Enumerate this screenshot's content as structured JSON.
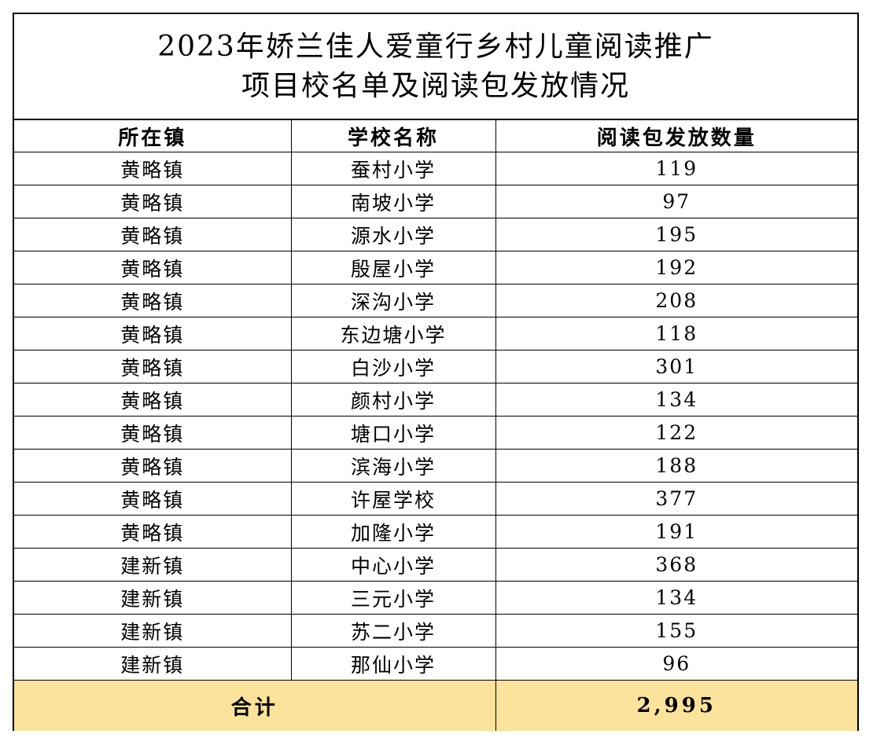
{
  "title": {
    "line1": "2023年娇兰佳人爱童行乡村儿童阅读推广",
    "line2": "项目校名单及阅读包发放情况"
  },
  "table": {
    "headers": [
      "所在镇",
      "学校名称",
      "阅读包发放数量"
    ],
    "rows": [
      {
        "town": "黄略镇",
        "school": "蚕村小学",
        "count": "119"
      },
      {
        "town": "黄略镇",
        "school": "南坡小学",
        "count": "97"
      },
      {
        "town": "黄略镇",
        "school": "源水小学",
        "count": "195"
      },
      {
        "town": "黄略镇",
        "school": "殷屋小学",
        "count": "192"
      },
      {
        "town": "黄略镇",
        "school": "深沟小学",
        "count": "208"
      },
      {
        "town": "黄略镇",
        "school": "东边塘小学",
        "count": "118"
      },
      {
        "town": "黄略镇",
        "school": "白沙小学",
        "count": "301"
      },
      {
        "town": "黄略镇",
        "school": "颜村小学",
        "count": "134"
      },
      {
        "town": "黄略镇",
        "school": "塘口小学",
        "count": "122"
      },
      {
        "town": "黄略镇",
        "school": "滨海小学",
        "count": "188"
      },
      {
        "town": "黄略镇",
        "school": "许屋学校",
        "count": "377"
      },
      {
        "town": "黄略镇",
        "school": "加隆小学",
        "count": "191"
      },
      {
        "town": "建新镇",
        "school": "中心小学",
        "count": "368"
      },
      {
        "town": "建新镇",
        "school": "三元小学",
        "count": "134"
      },
      {
        "town": "建新镇",
        "school": "苏二小学",
        "count": "155"
      },
      {
        "town": "建新镇",
        "school": "那仙小学",
        "count": "96"
      }
    ],
    "total": {
      "label": "合计",
      "value": "2,995"
    }
  },
  "colors": {
    "total_row_background": "#fbe39b",
    "border": "#000000"
  }
}
